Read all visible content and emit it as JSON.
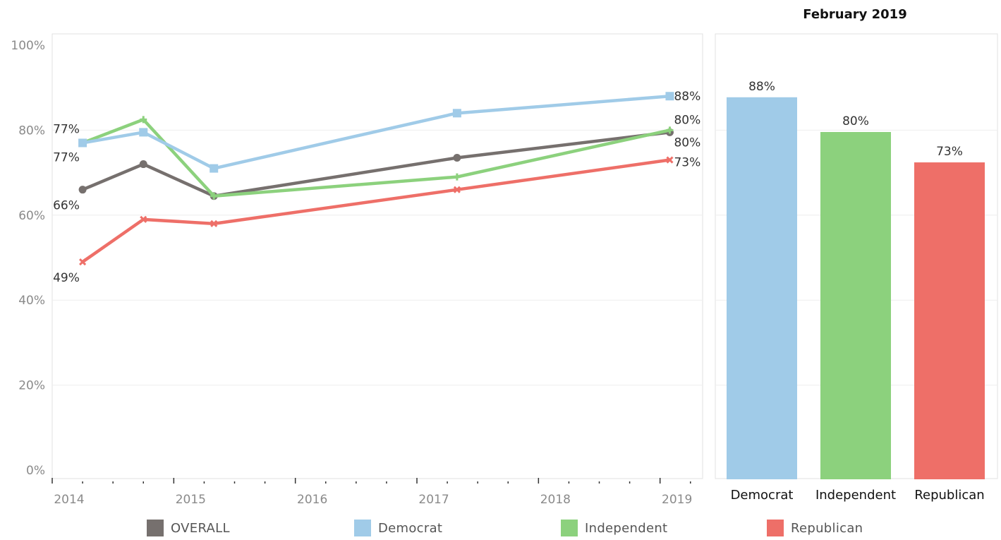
{
  "line_chart": {
    "y_ticks": [
      "100%",
      "80%",
      "60%",
      "40%",
      "20%",
      "0%"
    ],
    "x_ticks": [
      "2014",
      "2015",
      "2016",
      "2017",
      "2018",
      "2019"
    ]
  },
  "bar_chart": {
    "title": "February 2019"
  },
  "legend": [
    {
      "label": "OVERALL",
      "color": "#76706e"
    },
    {
      "label": "Democrat",
      "color": "#a0cbe8"
    },
    {
      "label": "Independent",
      "color": "#8cd17d"
    },
    {
      "label": "Republican",
      "color": "#ee6f68"
    }
  ],
  "chart_data": [
    {
      "type": "line",
      "x_unit": "year",
      "ylim": [
        0,
        100
      ],
      "grid": true,
      "legend_placement": "bottom",
      "series": [
        {
          "name": "OVERALL",
          "color": "#76706e",
          "marker": "circle",
          "x": [
            2014.25,
            2014.75,
            2015.33,
            2017.33,
            2019.08
          ],
          "y": [
            66,
            72,
            64.5,
            73.5,
            79.5
          ],
          "labels": [
            "66%",
            "",
            "",
            "",
            "80%"
          ]
        },
        {
          "name": "Democrat",
          "color": "#a0cbe8",
          "marker": "square",
          "x": [
            2014.25,
            2014.75,
            2015.33,
            2017.33,
            2019.08
          ],
          "y": [
            77,
            79.5,
            71,
            84,
            88
          ],
          "labels": [
            "77%",
            "",
            "",
            "",
            "88%"
          ]
        },
        {
          "name": "Independent",
          "color": "#8cd17d",
          "marker": "plus",
          "x": [
            2014.25,
            2014.75,
            2015.33,
            2017.33,
            2019.08
          ],
          "y": [
            77,
            82.5,
            64.5,
            69,
            80
          ],
          "labels": [
            "77%",
            "",
            "",
            "",
            "80%"
          ]
        },
        {
          "name": "Republican",
          "color": "#ee6f68",
          "marker": "x",
          "x": [
            2014.25,
            2014.75,
            2015.33,
            2017.33,
            2019.08
          ],
          "y": [
            49,
            59,
            58,
            66,
            73
          ],
          "labels": [
            "49%",
            "",
            "",
            "",
            "73%"
          ]
        }
      ]
    },
    {
      "type": "bar",
      "title": "February 2019",
      "categories": [
        "Democrat",
        "Independent",
        "Republican"
      ],
      "values": [
        88,
        80,
        73
      ],
      "labels": [
        "88%",
        "80%",
        "73%"
      ],
      "colors": [
        "#a0cbe8",
        "#8cd17d",
        "#ee6f68"
      ],
      "ylim": [
        0,
        100
      ]
    }
  ]
}
